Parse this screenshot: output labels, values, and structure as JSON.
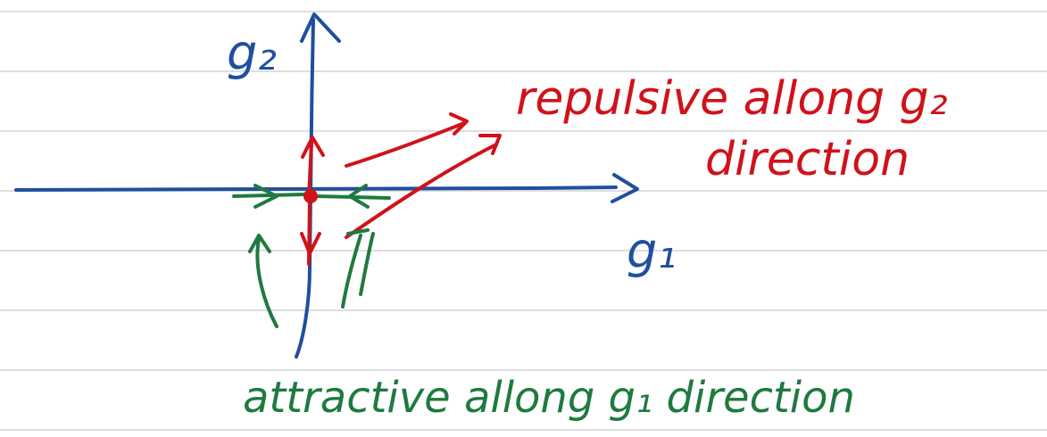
{
  "colors": {
    "background": "#ffffff",
    "ruled_line": "#d4d4d4",
    "axis_blue": "#1f4f9e",
    "repulsive_red": "#d0121b",
    "attractive_green": "#1f7a3f"
  },
  "axes": {
    "vertical_label": "g₂",
    "horizontal_label": "g₁"
  },
  "annotations": {
    "repulsive_line1": "repulsive allong g₂",
    "repulsive_line2": "direction",
    "attractive": "attractive allong g₁ direction"
  }
}
